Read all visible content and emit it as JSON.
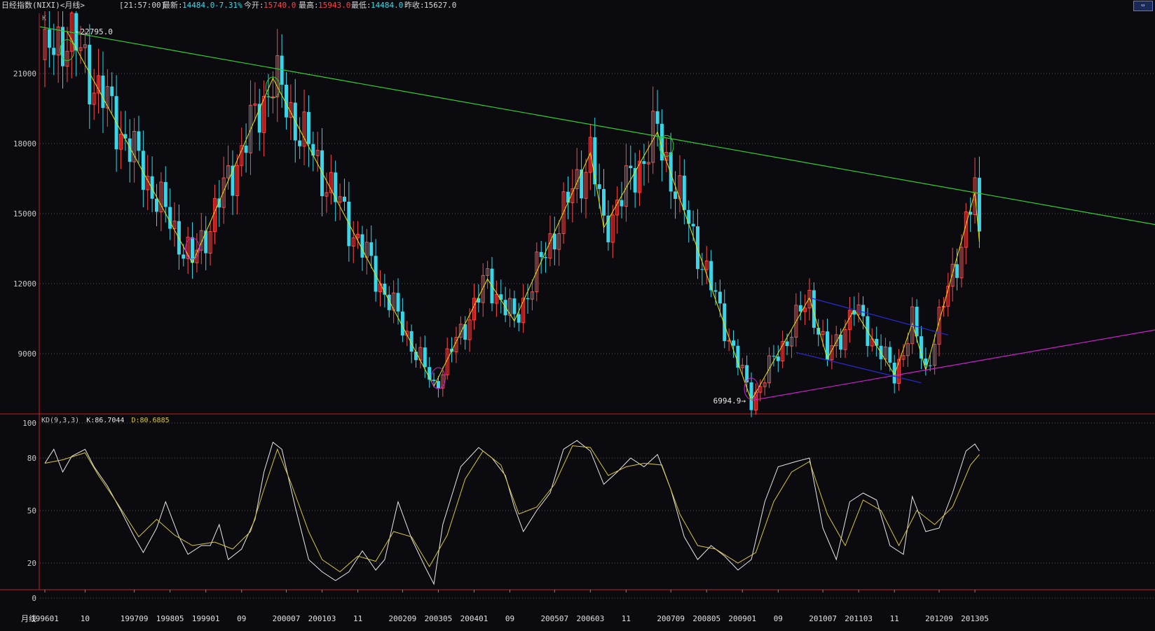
{
  "header": {
    "title": "日经指数(NIXI)<月线>",
    "time": "[21:57:00]",
    "latest_label": "最新:",
    "latest_value": "14484.0",
    "change": "-7.31%",
    "open_label": "今开:",
    "open_value": "15740.0",
    "high_label": "最高:",
    "high_value": "15943.0",
    "low_label": "最低:",
    "low_value": "14484.0",
    "prevclose_label": "昨收:",
    "prevclose_value": "15627.0"
  },
  "period_label": "月线",
  "colors": {
    "background": "#0b0b0f",
    "up_candle": "#ff4a4a",
    "down_candle": "#38d6e8",
    "k_line": "#e8e8e8",
    "d_line": "#d8c63a",
    "trendline_top": "#30d030",
    "trendline_bottom": "#d020d0",
    "channel": "#2a2ad8",
    "zigzag": "#e6e600",
    "grid": "#555560",
    "axis_frame": "#c02020"
  },
  "chart_data": [
    {
      "type": "candlestick",
      "name": "price",
      "panel_marker": "K",
      "yticks": [
        21000,
        18000,
        15000,
        12000,
        9000
      ],
      "ylim": [
        6300,
        23400
      ],
      "annotations": [
        {
          "text": "22795.0",
          "date": "1996-06",
          "value": 22795
        },
        {
          "text": "6994.9",
          "date": "2009-03",
          "value": 6994.9
        }
      ],
      "key_points": [
        {
          "date": "1996-06",
          "value": 22795
        },
        {
          "date": "1998-10",
          "value": 12880
        },
        {
          "date": "2000-04",
          "value": 20800
        },
        {
          "date": "2003-04",
          "value": 7600
        },
        {
          "date": "2004-04",
          "value": 12200
        },
        {
          "date": "2004-10",
          "value": 10400
        },
        {
          "date": "2006-03",
          "value": 17600
        },
        {
          "date": "2006-06",
          "value": 14400
        },
        {
          "date": "2007-06",
          "value": 18500
        },
        {
          "date": "2007-07",
          "value": 17800
        },
        {
          "date": "2009-03",
          "value": 6994.9
        },
        {
          "date": "2010-04",
          "value": 11400
        },
        {
          "date": "2010-08",
          "value": 8800
        },
        {
          "date": "2011-02",
          "value": 10900
        },
        {
          "date": "2011-11",
          "value": 8100
        },
        {
          "date": "2012-03",
          "value": 10300
        },
        {
          "date": "2012-06",
          "value": 8300
        },
        {
          "date": "2013-05",
          "value": 15900
        },
        {
          "date": "2013-06",
          "value": 13800
        }
      ]
    },
    {
      "type": "line",
      "name": "KD",
      "legend": {
        "name": "KD(9,3,3)",
        "k": "K:86.7044",
        "d": "D:80.6885"
      },
      "yticks": [
        100,
        80,
        50,
        20,
        0
      ],
      "ylim": [
        0,
        100
      ],
      "series": [
        {
          "name": "K",
          "points": [
            [
              "1996-01",
              77
            ],
            [
              "1996-03",
              85
            ],
            [
              "1996-05",
              72
            ],
            [
              "1996-07",
              81
            ],
            [
              "1996-10",
              85
            ],
            [
              "1996-12",
              75
            ],
            [
              "1997-03",
              64
            ],
            [
              "1997-06",
              50
            ],
            [
              "1997-09",
              35
            ],
            [
              "1997-11",
              26
            ],
            [
              "1998-02",
              40
            ],
            [
              "1998-04",
              55
            ],
            [
              "1998-07",
              35
            ],
            [
              "1998-09",
              25
            ],
            [
              "1998-12",
              30
            ],
            [
              "1999-02",
              30
            ],
            [
              "1999-04",
              42
            ],
            [
              "1999-06",
              22
            ],
            [
              "1999-09",
              28
            ],
            [
              "1999-12",
              45
            ],
            [
              "2000-02",
              72
            ],
            [
              "2000-04",
              89
            ],
            [
              "2000-06",
              85
            ],
            [
              "2000-09",
              52
            ],
            [
              "2000-12",
              22
            ],
            [
              "2001-03",
              15
            ],
            [
              "2001-06",
              10
            ],
            [
              "2001-09",
              15
            ],
            [
              "2001-12",
              27
            ],
            [
              "2002-03",
              16
            ],
            [
              "2002-05",
              22
            ],
            [
              "2002-08",
              55
            ],
            [
              "2002-11",
              34
            ],
            [
              "2003-02",
              18
            ],
            [
              "2003-04",
              8
            ],
            [
              "2003-06",
              42
            ],
            [
              "2003-10",
              75
            ],
            [
              "2004-02",
              86
            ],
            [
              "2004-05",
              80
            ],
            [
              "2004-08",
              70
            ],
            [
              "2004-10",
              52
            ],
            [
              "2004-12",
              38
            ],
            [
              "2005-03",
              50
            ],
            [
              "2005-06",
              60
            ],
            [
              "2005-09",
              85
            ],
            [
              "2005-12",
              90
            ],
            [
              "2006-03",
              84
            ],
            [
              "2006-06",
              65
            ],
            [
              "2006-09",
              72
            ],
            [
              "2006-12",
              80
            ],
            [
              "2007-03",
              75
            ],
            [
              "2007-06",
              82
            ],
            [
              "2007-09",
              62
            ],
            [
              "2007-12",
              35
            ],
            [
              "2008-03",
              22
            ],
            [
              "2008-06",
              30
            ],
            [
              "2008-09",
              24
            ],
            [
              "2008-12",
              16
            ],
            [
              "2009-03",
              22
            ],
            [
              "2009-06",
              55
            ],
            [
              "2009-09",
              75
            ],
            [
              "2010-01",
              78
            ],
            [
              "2010-04",
              80
            ],
            [
              "2010-07",
              40
            ],
            [
              "2010-10",
              22
            ],
            [
              "2011-01",
              55
            ],
            [
              "2011-04",
              60
            ],
            [
              "2011-07",
              56
            ],
            [
              "2011-10",
              30
            ],
            [
              "2012-01",
              25
            ],
            [
              "2012-03",
              58
            ],
            [
              "2012-06",
              38
            ],
            [
              "2012-09",
              40
            ],
            [
              "2012-12",
              60
            ],
            [
              "2013-03",
              84
            ],
            [
              "2013-05",
              88
            ],
            [
              "2013-06",
              84
            ]
          ]
        },
        {
          "name": "D",
          "points": [
            [
              "1996-01",
              77
            ],
            [
              "1996-05",
              79
            ],
            [
              "1996-10",
              83
            ],
            [
              "1997-01",
              70
            ],
            [
              "1997-05",
              55
            ],
            [
              "1997-10",
              35
            ],
            [
              "1998-02",
              45
            ],
            [
              "1998-06",
              36
            ],
            [
              "1998-10",
              30
            ],
            [
              "1999-03",
              32
            ],
            [
              "1999-07",
              28
            ],
            [
              "1999-11",
              38
            ],
            [
              "2000-02",
              62
            ],
            [
              "2000-05",
              85
            ],
            [
              "2000-08",
              66
            ],
            [
              "2000-12",
              38
            ],
            [
              "2001-03",
              22
            ],
            [
              "2001-07",
              15
            ],
            [
              "2001-11",
              24
            ],
            [
              "2002-03",
              21
            ],
            [
              "2002-07",
              38
            ],
            [
              "2002-11",
              35
            ],
            [
              "2003-03",
              18
            ],
            [
              "2003-07",
              36
            ],
            [
              "2003-11",
              68
            ],
            [
              "2004-03",
              84
            ],
            [
              "2004-07",
              76
            ],
            [
              "2004-11",
              48
            ],
            [
              "2005-03",
              52
            ],
            [
              "2005-07",
              65
            ],
            [
              "2005-11",
              87
            ],
            [
              "2006-03",
              86
            ],
            [
              "2006-07",
              70
            ],
            [
              "2006-11",
              75
            ],
            [
              "2007-03",
              77
            ],
            [
              "2007-07",
              76
            ],
            [
              "2007-11",
              48
            ],
            [
              "2008-03",
              30
            ],
            [
              "2008-07",
              28
            ],
            [
              "2008-12",
              20
            ],
            [
              "2009-04",
              26
            ],
            [
              "2009-08",
              55
            ],
            [
              "2009-12",
              72
            ],
            [
              "2010-04",
              78
            ],
            [
              "2010-08",
              48
            ],
            [
              "2010-12",
              30
            ],
            [
              "2011-04",
              56
            ],
            [
              "2011-08",
              50
            ],
            [
              "2011-12",
              30
            ],
            [
              "2012-04",
              50
            ],
            [
              "2012-08",
              42
            ],
            [
              "2012-12",
              52
            ],
            [
              "2013-04",
              76
            ],
            [
              "2013-06",
              82
            ]
          ]
        }
      ]
    }
  ],
  "x_axis": {
    "ticks": [
      {
        "label": "199601",
        "date": "1996-01"
      },
      {
        "label": "10",
        "date": "1996-10"
      },
      {
        "label": "199709",
        "date": "1997-09"
      },
      {
        "label": "199805",
        "date": "1998-05"
      },
      {
        "label": "199901",
        "date": "1999-01"
      },
      {
        "label": "09",
        "date": "1999-09"
      },
      {
        "label": "200007",
        "date": "2000-07"
      },
      {
        "label": "200103",
        "date": "2001-03"
      },
      {
        "label": "11",
        "date": "2001-11"
      },
      {
        "label": "200209",
        "date": "2002-09"
      },
      {
        "label": "200305",
        "date": "2003-05"
      },
      {
        "label": "200401",
        "date": "2004-01"
      },
      {
        "label": "09",
        "date": "2004-09"
      },
      {
        "label": "200507",
        "date": "2005-07"
      },
      {
        "label": "200603",
        "date": "2006-03"
      },
      {
        "label": "11",
        "date": "2006-11"
      },
      {
        "label": "200709",
        "date": "2007-09"
      },
      {
        "label": "200805",
        "date": "2008-05"
      },
      {
        "label": "200901",
        "date": "2009-01"
      },
      {
        "label": "09",
        "date": "2009-09"
      },
      {
        "label": "201007",
        "date": "2010-07"
      },
      {
        "label": "201103",
        "date": "2011-03"
      },
      {
        "label": "11",
        "date": "2011-11"
      },
      {
        "label": "201209",
        "date": "2012-09"
      },
      {
        "label": "201305",
        "date": "2013-05"
      }
    ]
  }
}
